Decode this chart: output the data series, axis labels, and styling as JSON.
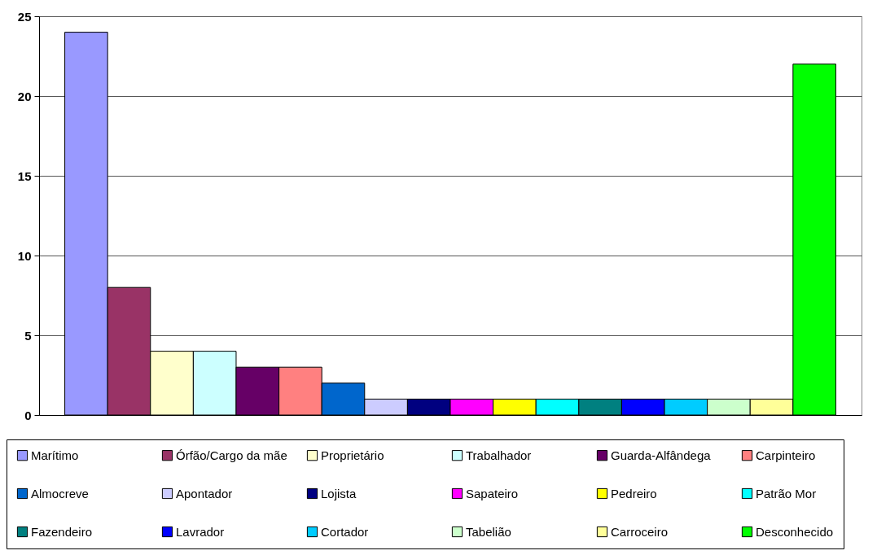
{
  "chart_data": {
    "type": "bar",
    "categories": [
      null
    ],
    "series": [
      {
        "name": "Marítimo",
        "color": "#9999ff",
        "values": [
          24
        ]
      },
      {
        "name": "Órfão/Cargo da mãe",
        "color": "#993366",
        "values": [
          8
        ]
      },
      {
        "name": "Proprietário",
        "color": "#ffffcc",
        "values": [
          4
        ]
      },
      {
        "name": "Trabalhador",
        "color": "#ccffff",
        "values": [
          4
        ]
      },
      {
        "name": "Guarda-Alfândega",
        "color": "#660066",
        "values": [
          3
        ]
      },
      {
        "name": "Carpinteiro",
        "color": "#ff8080",
        "values": [
          3
        ]
      },
      {
        "name": "Almocreve",
        "color": "#0066cc",
        "values": [
          2
        ]
      },
      {
        "name": "Apontador",
        "color": "#ccccff",
        "values": [
          1
        ]
      },
      {
        "name": "Lojista",
        "color": "#000080",
        "values": [
          1
        ]
      },
      {
        "name": "Sapateiro",
        "color": "#ff00ff",
        "values": [
          1
        ]
      },
      {
        "name": "Pedreiro",
        "color": "#ffff00",
        "values": [
          1
        ]
      },
      {
        "name": "Patrão Mor",
        "color": "#00ffff",
        "values": [
          1
        ]
      },
      {
        "name": "Fazendeiro",
        "color": "#008080",
        "values": [
          1
        ]
      },
      {
        "name": "Lavrador",
        "color": "#0000ff",
        "values": [
          1
        ]
      },
      {
        "name": "Cortador",
        "color": "#00ccff",
        "values": [
          1
        ]
      },
      {
        "name": "Tabelião",
        "color": "#ccffcc",
        "values": [
          1
        ]
      },
      {
        "name": "Carroceiro",
        "color": "#ffff99",
        "values": [
          1
        ]
      },
      {
        "name": "Desconhecido",
        "color": "#00ff00",
        "values": [
          22
        ]
      }
    ],
    "ylim": [
      0,
      25
    ],
    "yticks": [
      0,
      5,
      10,
      15,
      20,
      25
    ],
    "grid": "y",
    "legend": "bottom"
  }
}
